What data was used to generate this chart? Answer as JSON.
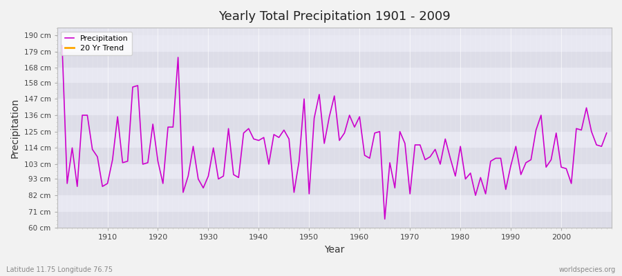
{
  "title": "Yearly Total Precipitation 1901 - 2009",
  "xlabel": "Year",
  "ylabel": "Precipitation",
  "subtitle_left": "Latitude 11.75 Longitude 76.75",
  "subtitle_right": "worldspecies.org",
  "line_color": "#CC00CC",
  "trend_color": "#FFA500",
  "legend_labels": [
    "Precipitation",
    "20 Yr Trend"
  ],
  "ylim": [
    60,
    195
  ],
  "yticks": [
    60,
    71,
    82,
    93,
    103,
    114,
    125,
    136,
    147,
    158,
    168,
    179,
    190
  ],
  "ytick_labels": [
    "60 cm",
    "71 cm",
    "82 cm",
    "93 cm",
    "103 cm",
    "114 cm",
    "125 cm",
    "136 cm",
    "147 cm",
    "158 cm",
    "168 cm",
    "179 cm",
    "190 cm"
  ],
  "xlim": [
    1900,
    2010
  ],
  "xticks": [
    1910,
    1920,
    1930,
    1940,
    1950,
    1960,
    1970,
    1980,
    1990,
    2000
  ],
  "fig_facecolor": "#f0f0f0",
  "plot_bg_color": "#e8e8f0",
  "band_colors": [
    "#dcdce8",
    "#e8e8f2"
  ],
  "years": [
    1901,
    1902,
    1903,
    1904,
    1905,
    1906,
    1907,
    1908,
    1909,
    1910,
    1911,
    1912,
    1913,
    1914,
    1915,
    1916,
    1917,
    1918,
    1919,
    1920,
    1921,
    1922,
    1923,
    1924,
    1925,
    1926,
    1927,
    1928,
    1929,
    1930,
    1931,
    1932,
    1933,
    1934,
    1935,
    1936,
    1937,
    1938,
    1939,
    1940,
    1941,
    1942,
    1943,
    1944,
    1945,
    1946,
    1947,
    1948,
    1949,
    1950,
    1951,
    1952,
    1953,
    1954,
    1955,
    1956,
    1957,
    1958,
    1959,
    1960,
    1961,
    1962,
    1963,
    1964,
    1965,
    1966,
    1967,
    1968,
    1969,
    1970,
    1971,
    1972,
    1973,
    1974,
    1975,
    1976,
    1977,
    1978,
    1979,
    1980,
    1981,
    1982,
    1983,
    1984,
    1985,
    1986,
    1987,
    1988,
    1989,
    1990,
    1991,
    1992,
    1993,
    1994,
    1995,
    1996,
    1997,
    1998,
    1999,
    2000,
    2001,
    2002,
    2003,
    2004,
    2005,
    2006,
    2007,
    2008,
    2009
  ],
  "precip": [
    183,
    90,
    114,
    88,
    136,
    136,
    113,
    108,
    88,
    90,
    106,
    135,
    104,
    105,
    155,
    156,
    103,
    104,
    130,
    105,
    90,
    128,
    128,
    175,
    84,
    95,
    115,
    93,
    87,
    95,
    114,
    93,
    95,
    127,
    96,
    94,
    124,
    127,
    120,
    119,
    121,
    103,
    123,
    121,
    126,
    120,
    84,
    105,
    147,
    83,
    134,
    150,
    117,
    135,
    149,
    119,
    124,
    136,
    128,
    135,
    109,
    107,
    124,
    125,
    66,
    104,
    87,
    125,
    117,
    83,
    116,
    116,
    106,
    108,
    113,
    103,
    120,
    107,
    95,
    115,
    93,
    97,
    82,
    94,
    83,
    105,
    107,
    107,
    86,
    102,
    115,
    96,
    104,
    106,
    126,
    136,
    101,
    106,
    124,
    101,
    100,
    90,
    127,
    126,
    141,
    125,
    116,
    115,
    124
  ]
}
